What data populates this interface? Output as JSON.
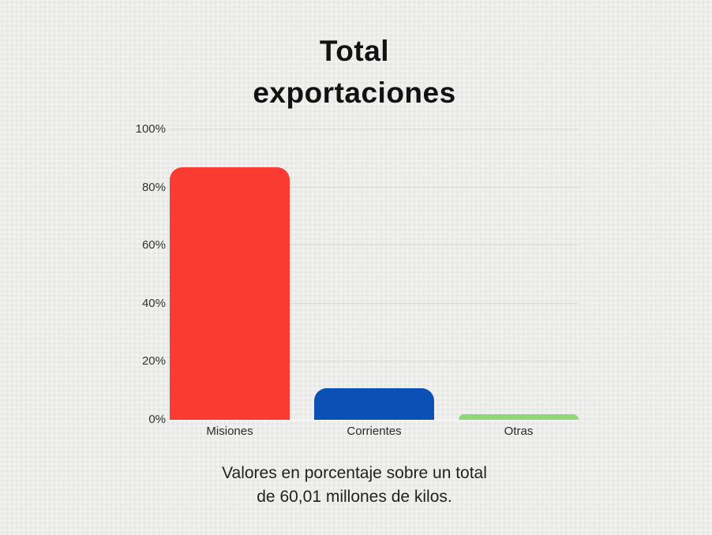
{
  "page": {
    "background_color": "#ededec"
  },
  "title": {
    "line1": "Total",
    "line2": "exportaciones",
    "full": "Total exportaciones"
  },
  "caption": {
    "line1": "Valores en porcentaje sobre un total",
    "line2": "de 60,01 millones de kilos.",
    "full": "Valores en porcentaje sobre un total de 60,01 millones de kilos."
  },
  "chart_data": {
    "type": "bar",
    "title": "Total exportaciones",
    "categories": [
      "Misiones",
      "Corrientes",
      "Otras"
    ],
    "values": [
      87,
      11,
      2
    ],
    "unit": "%",
    "bar_colors": [
      "#f93b32",
      "#0a50b5",
      "#8fd873"
    ],
    "yticks": [
      0,
      20,
      40,
      60,
      80,
      100
    ],
    "ytick_labels": [
      "0%",
      "20%",
      "40%",
      "60%",
      "80%",
      "100%"
    ],
    "ylim": [
      0,
      100
    ],
    "grid": true,
    "legend": false,
    "gridline_color": "#d9d9d9",
    "caption": "Valores en porcentaje sobre un total de 60,01 millones de kilos."
  }
}
